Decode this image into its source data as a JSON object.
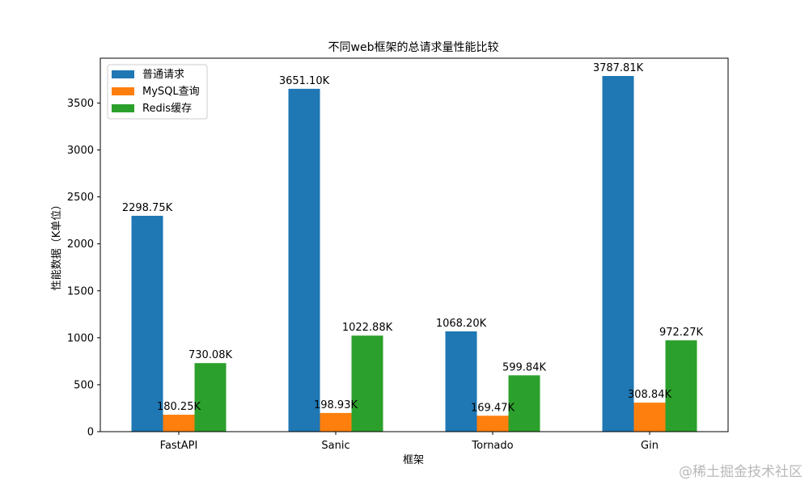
{
  "chart_data": {
    "type": "bar",
    "title": "不同web框架的总请求量性能比较",
    "xlabel": "框架",
    "ylabel": "性能数据（K单位）",
    "categories": [
      "FastAPI",
      "Sanic",
      "Tornado",
      "Gin"
    ],
    "series": [
      {
        "name": "普通请求",
        "color": "#1f77b4",
        "values": [
          2298.75,
          3651.1,
          1068.2,
          3787.81
        ],
        "labels": [
          "2298.75K",
          "3651.10K",
          "1068.20K",
          "3787.81K"
        ]
      },
      {
        "name": "MySQL查询",
        "color": "#ff7f0e",
        "values": [
          180.25,
          198.93,
          169.47,
          308.84
        ],
        "labels": [
          "180.25K",
          "198.93K",
          "169.47K",
          "308.84K"
        ]
      },
      {
        "name": "Redis缓存",
        "color": "#2ca02c",
        "values": [
          730.08,
          1022.88,
          599.84,
          972.27
        ],
        "labels": [
          "730.08K",
          "1022.88K",
          "599.84K",
          "972.27K"
        ]
      }
    ],
    "ylim": [
      0,
      3977.2
    ],
    "yticks": [
      0,
      500,
      1000,
      1500,
      2000,
      2500,
      3000,
      3500
    ],
    "grid": false,
    "legend": "top-left"
  },
  "watermark": "@稀土掘金技术社区"
}
